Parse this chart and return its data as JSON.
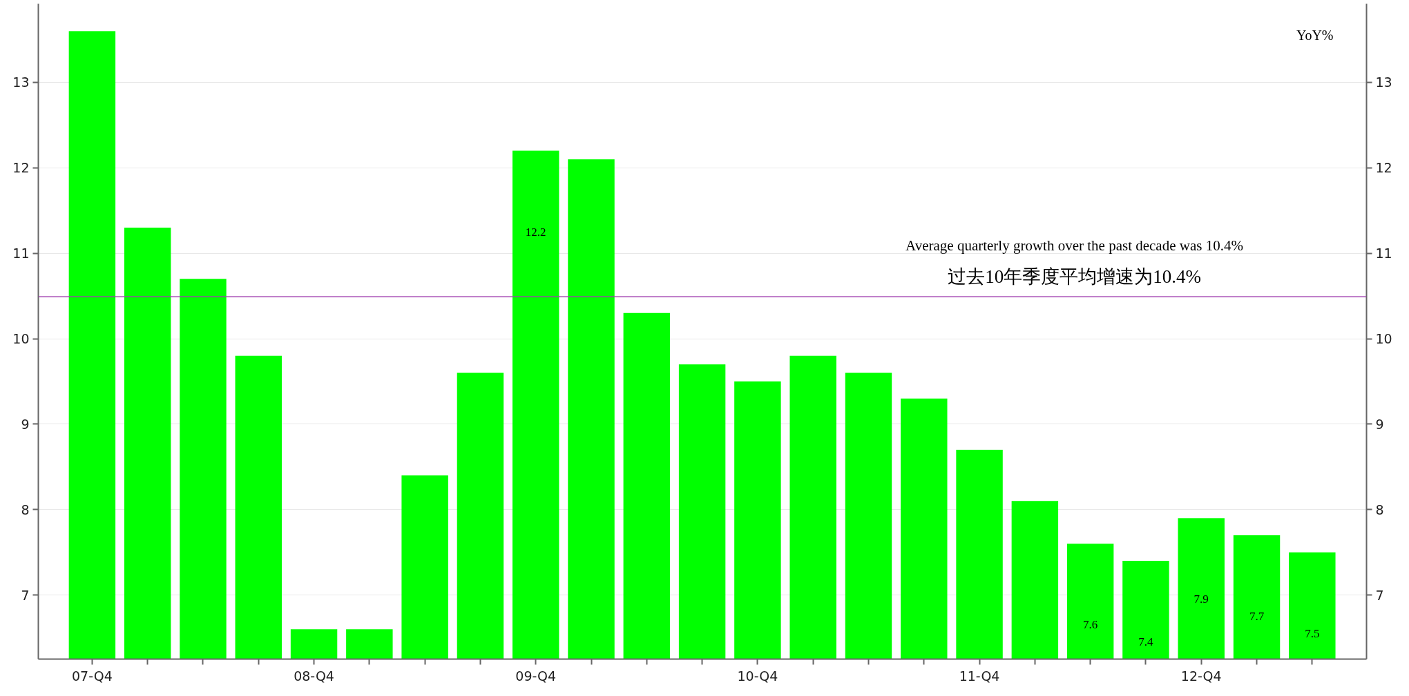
{
  "chart_data": {
    "type": "bar",
    "categories": [
      "07-Q4",
      null,
      null,
      null,
      "08-Q4",
      null,
      null,
      null,
      "09-Q4",
      null,
      null,
      null,
      "10-Q4",
      null,
      null,
      null,
      "11-Q4",
      null,
      null,
      null,
      "12-Q4",
      null,
      null
    ],
    "values": [
      13.6,
      11.3,
      10.7,
      9.8,
      6.6,
      6.6,
      8.4,
      9.6,
      12.2,
      12.1,
      10.3,
      9.7,
      9.5,
      9.8,
      9.6,
      9.3,
      8.7,
      8.1,
      7.6,
      7.4,
      7.9,
      7.7,
      7.5
    ],
    "value_labels": [
      null,
      null,
      null,
      null,
      null,
      null,
      null,
      null,
      "12.2",
      null,
      null,
      null,
      null,
      null,
      null,
      null,
      null,
      null,
      "7.6",
      "7.4",
      "7.9",
      "7.7",
      "7.5"
    ],
    "color": "#00ff00",
    "ylim": [
      6.25,
      13.92
    ],
    "yticks": [
      7,
      8,
      9,
      10,
      11,
      12,
      13
    ],
    "y2lim": [
      6.25,
      13.92
    ],
    "y2ticks": [
      7,
      8,
      9,
      10,
      11,
      12,
      13
    ],
    "grid": "y",
    "ref_lines": [
      {
        "axis": "y",
        "value": 10.49,
        "color": "#a040b0"
      }
    ],
    "annotations": [
      "YoY%",
      "Average quarterly growth over the past decade was 10.4%",
      "过去10年季度平均增速为10.4%"
    ]
  }
}
